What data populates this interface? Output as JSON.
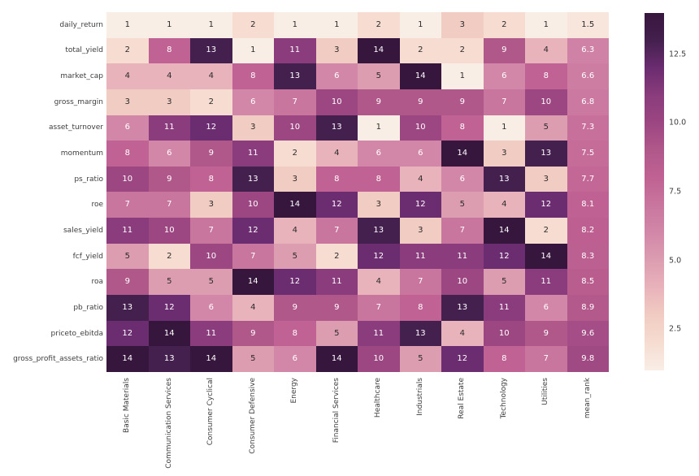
{
  "chart_data": {
    "type": "heatmap",
    "title": "",
    "rows": [
      "daily_return",
      "total_yield",
      "market_cap",
      "gross_margin",
      "asset_turnover",
      "momentum",
      "ps_ratio",
      "roe",
      "sales_yield",
      "fcf_yield",
      "roa",
      "pb_ratio",
      "priceto_ebitda",
      "gross_profit_assets_ratio"
    ],
    "columns": [
      "Basic Materials",
      "Communication Services",
      "Consumer Cyclical",
      "Consumer Defensive",
      "Energy",
      "Financial Services",
      "Healthcare",
      "Industrials",
      "Real Estate",
      "Technology",
      "Utilities",
      "mean_rank"
    ],
    "values": [
      [
        1,
        1,
        1,
        2,
        1,
        1,
        2,
        1,
        3,
        2,
        1,
        1.5
      ],
      [
        2,
        8,
        13,
        1,
        11,
        3,
        14,
        2,
        2,
        9,
        4,
        6.3
      ],
      [
        4,
        4,
        4,
        8,
        13,
        6,
        5,
        14,
        1,
        6,
        8,
        6.6
      ],
      [
        3,
        3,
        2,
        6,
        7,
        10,
        9,
        9,
        9,
        7,
        10,
        6.8
      ],
      [
        6,
        11,
        12,
        3,
        10,
        13,
        1,
        10,
        8,
        1,
        5,
        7.3
      ],
      [
        8,
        6,
        9,
        11,
        2,
        4,
        6,
        6,
        14,
        3,
        13,
        7.5
      ],
      [
        10,
        9,
        8,
        13,
        3,
        8,
        8,
        4,
        6,
        13,
        3,
        7.7
      ],
      [
        7,
        7,
        3,
        10,
        14,
        12,
        3,
        12,
        5,
        4,
        12,
        8.1
      ],
      [
        11,
        10,
        7,
        12,
        4,
        7,
        13,
        3,
        7,
        14,
        2,
        8.2
      ],
      [
        5,
        2,
        10,
        7,
        5,
        2,
        12,
        11,
        11,
        12,
        14,
        8.3
      ],
      [
        9,
        5,
        5,
        14,
        12,
        11,
        4,
        7,
        10,
        5,
        11,
        8.5
      ],
      [
        13,
        12,
        6,
        4,
        9,
        9,
        7,
        8,
        13,
        11,
        6,
        8.9
      ],
      [
        12,
        14,
        11,
        9,
        8,
        5,
        11,
        13,
        4,
        10,
        9,
        9.6
      ],
      [
        14,
        13,
        14,
        5,
        6,
        14,
        10,
        5,
        12,
        8,
        7,
        9.8
      ]
    ],
    "vmin": 1,
    "vmax": 14,
    "colormap_anchors": [
      "#f9eee6",
      "#f6dcd1",
      "#f1ccc2",
      "#e9b3bb",
      "#dc9db1",
      "#d287a8",
      "#c9769e",
      "#c06293",
      "#b1588b",
      "#9c4682",
      "#8a3c7c",
      "#6b2c70",
      "#44204e",
      "#37163e"
    ],
    "annotation_white_text_min_value": 6,
    "colors": {
      "annotation_dark": "#2b2b2b",
      "annotation_light": "#ffffff",
      "axis_label": "#3d3d3d",
      "background": "#ffffff"
    },
    "colorbar": {
      "position": "right",
      "ticks": [
        {
          "label": "12.5",
          "value": 12.5
        },
        {
          "label": "10.0",
          "value": 10.0
        },
        {
          "label": "7.5",
          "value": 7.5
        },
        {
          "label": "5.0",
          "value": 5.0
        },
        {
          "label": "2.5",
          "value": 2.5
        }
      ]
    },
    "grid": false,
    "legend_position": "right"
  }
}
